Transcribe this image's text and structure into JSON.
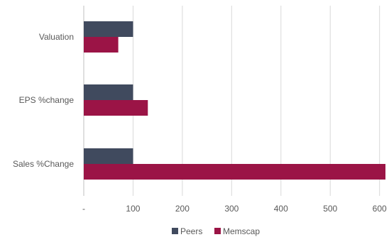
{
  "chart_data": {
    "type": "bar",
    "orientation": "horizontal",
    "categories": [
      "Valuation",
      "EPS %change",
      "Sales %Change"
    ],
    "series": [
      {
        "name": "Peers",
        "color": "#404A5E",
        "values": [
          100,
          100,
          100
        ]
      },
      {
        "name": "Memscap",
        "color": "#9B1446",
        "values": [
          70,
          130,
          612
        ]
      }
    ],
    "xlim": [
      0,
      612
    ],
    "xticks": [
      0,
      100,
      200,
      300,
      400,
      500,
      600
    ],
    "xtick_labels": [
      "-",
      "100",
      "200",
      "300",
      "400",
      "500",
      "600"
    ],
    "grid": "vertical",
    "legend_position": "bottom"
  }
}
